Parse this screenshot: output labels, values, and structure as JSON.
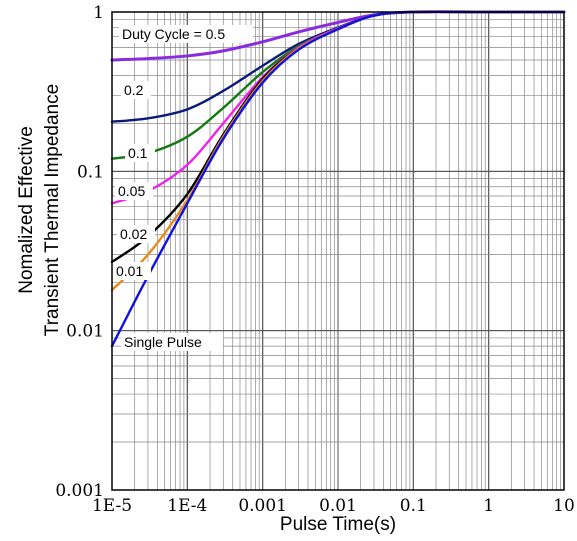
{
  "chart_data": {
    "type": "line",
    "xlabel": "Pulse Time(s)",
    "ylabel_lines": [
      "Nomalized Effective",
      "Transient Thermal Impedance"
    ],
    "xscale": "log",
    "yscale": "log",
    "xlim": [
      1e-05,
      10
    ],
    "ylim": [
      0.001,
      1
    ],
    "grid": true,
    "x_ticks": [
      {
        "value": 1e-05,
        "label": "1E-5"
      },
      {
        "value": 0.0001,
        "label": "1E-4"
      },
      {
        "value": 0.001,
        "label": "0.001"
      },
      {
        "value": 0.01,
        "label": "0.01"
      },
      {
        "value": 0.1,
        "label": "0.1"
      },
      {
        "value": 1,
        "label": "1"
      },
      {
        "value": 10,
        "label": "10"
      }
    ],
    "y_ticks": [
      {
        "value": 1,
        "label": "1"
      },
      {
        "value": 0.1,
        "label": "0.1"
      },
      {
        "value": 0.01,
        "label": "0.01"
      },
      {
        "value": 0.001,
        "label": "0.001"
      }
    ],
    "series": [
      {
        "name": "Duty Cycle = 0.5",
        "color": "#8a2be2",
        "x": [
          1e-05,
          3e-05,
          0.0001,
          0.0003,
          0.001,
          0.003,
          0.01,
          0.03,
          0.1,
          1,
          10
        ],
        "y": [
          0.5,
          0.51,
          0.53,
          0.57,
          0.65,
          0.75,
          0.86,
          0.96,
          1.0,
          1.0,
          1.0
        ]
      },
      {
        "name": "0.2",
        "color": "#0a1a7a",
        "x": [
          1e-05,
          3e-05,
          0.0001,
          0.0003,
          0.001,
          0.003,
          0.01,
          0.03,
          0.1,
          1,
          10
        ],
        "y": [
          0.205,
          0.215,
          0.245,
          0.32,
          0.46,
          0.63,
          0.8,
          0.95,
          1.0,
          1.0,
          1.0
        ]
      },
      {
        "name": "0.1",
        "color": "#127a12",
        "x": [
          1e-05,
          3e-05,
          0.0001,
          0.0003,
          0.001,
          0.003,
          0.01,
          0.03,
          0.1,
          1,
          10
        ],
        "y": [
          0.12,
          0.13,
          0.165,
          0.25,
          0.42,
          0.61,
          0.79,
          0.95,
          1.0,
          1.0,
          1.0
        ]
      },
      {
        "name": "0.05",
        "color": "#ee22ee",
        "x": [
          1e-05,
          3e-05,
          0.0001,
          0.0003,
          0.001,
          0.003,
          0.01,
          0.03,
          0.1,
          1,
          10
        ],
        "y": [
          0.063,
          0.075,
          0.11,
          0.2,
          0.39,
          0.6,
          0.79,
          0.95,
          1.0,
          1.0,
          1.0
        ]
      },
      {
        "name": "0.02",
        "color": "#000000",
        "x": [
          1e-05,
          3e-05,
          0.0001,
          0.0003,
          0.001,
          0.003,
          0.01,
          0.03,
          0.1,
          1,
          10
        ],
        "y": [
          0.027,
          0.039,
          0.072,
          0.17,
          0.38,
          0.59,
          0.78,
          0.95,
          1.0,
          1.0,
          1.0
        ]
      },
      {
        "name": "0.01",
        "color": "#e88a1a",
        "x": [
          1e-05,
          3e-05,
          0.0001,
          0.0003,
          0.001,
          0.003,
          0.01,
          0.03,
          0.1,
          1,
          10
        ],
        "y": [
          0.018,
          0.03,
          0.066,
          0.165,
          0.37,
          0.59,
          0.78,
          0.95,
          1.0,
          1.0,
          1.0
        ]
      },
      {
        "name": "Single Pulse",
        "color": "#1010e0",
        "x": [
          1e-05,
          3e-05,
          0.0001,
          0.0003,
          0.001,
          0.003,
          0.01,
          0.03,
          0.1,
          1,
          10
        ],
        "y": [
          0.008,
          0.022,
          0.063,
          0.16,
          0.36,
          0.58,
          0.78,
          0.95,
          1.0,
          1.0,
          1.0
        ]
      }
    ]
  }
}
